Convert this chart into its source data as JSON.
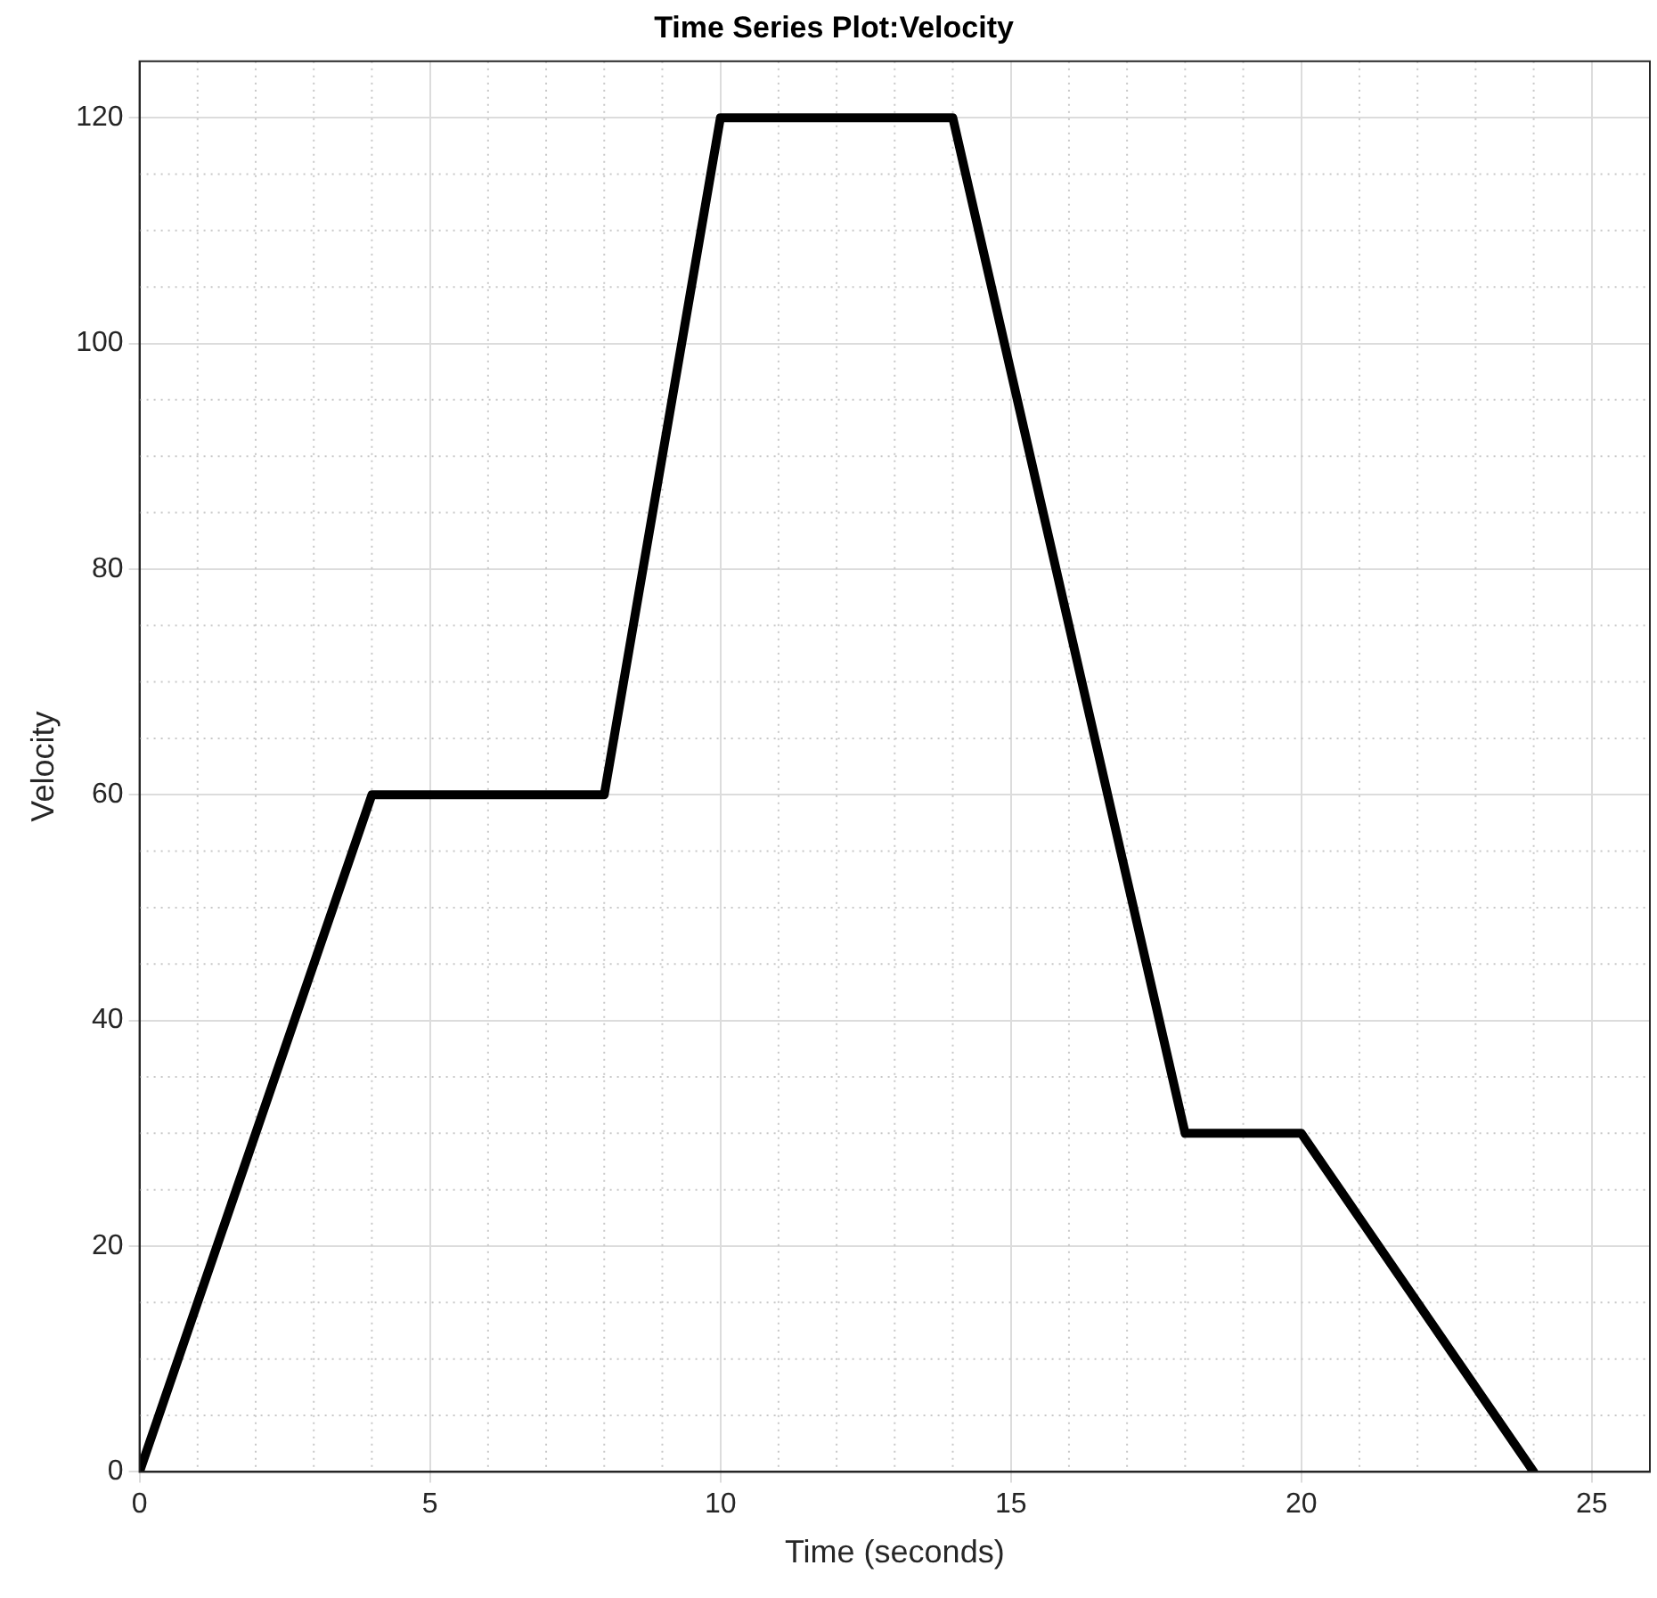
{
  "chart_data": {
    "type": "line",
    "title": "Time Series Plot:Velocity",
    "xlabel": "Time (seconds)",
    "ylabel": "Velocity",
    "x": [
      0,
      4,
      8,
      10,
      14,
      18,
      20,
      24
    ],
    "series": [
      {
        "color": "#000000",
        "values": [
          0,
          60,
          60,
          120,
          120,
          30,
          30,
          0
        ]
      }
    ],
    "xlim": [
      0,
      26
    ],
    "ylim": [
      0,
      125
    ],
    "xticks": [
      0,
      5,
      10,
      15,
      20,
      25
    ],
    "yticks": [
      0,
      20,
      40,
      60,
      80,
      100,
      120
    ],
    "grid": true,
    "legend": false,
    "marker": "none",
    "line_style": "solid"
  }
}
